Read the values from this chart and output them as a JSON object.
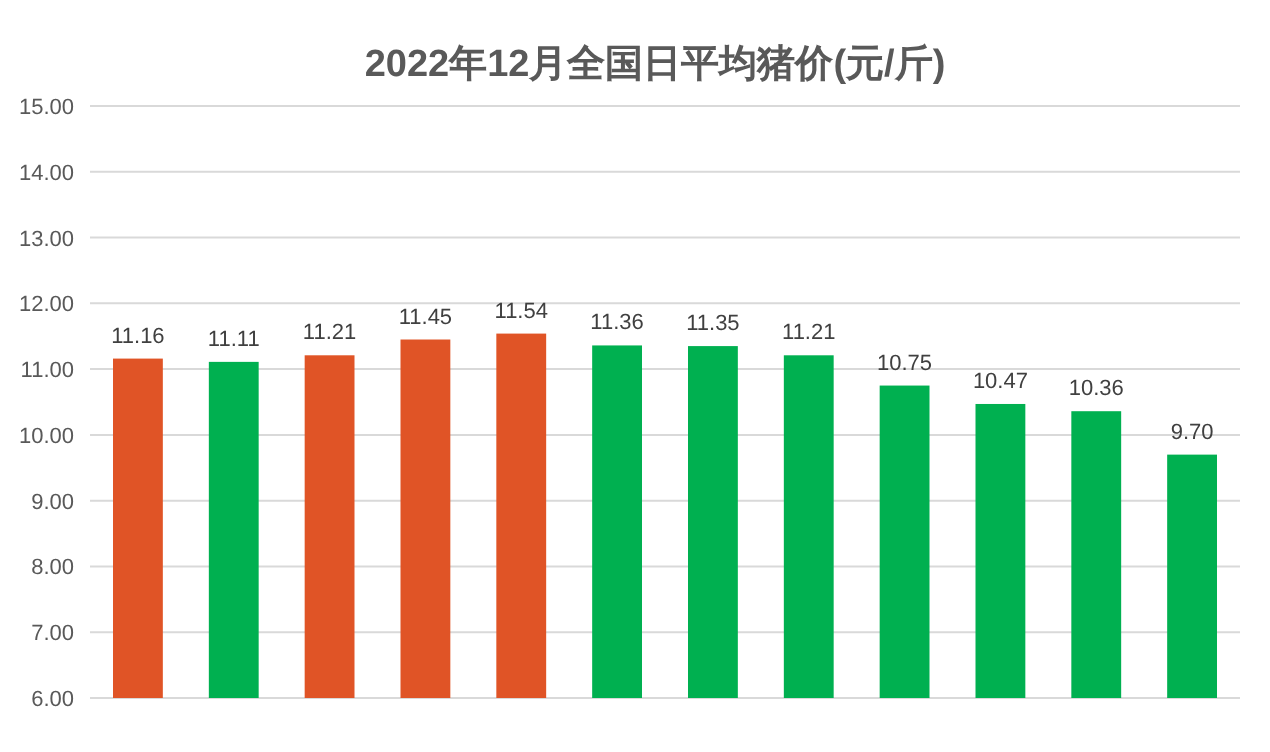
{
  "chart_data": {
    "type": "bar",
    "title": "2022年12月全国日平均猪价(元/斤)",
    "categories": [
      null,
      null,
      null,
      null,
      null,
      null,
      null,
      null,
      null,
      null,
      null,
      null
    ],
    "values": [
      11.16,
      11.11,
      11.21,
      11.45,
      11.54,
      11.36,
      11.35,
      11.21,
      10.75,
      10.47,
      10.36,
      9.7
    ],
    "value_labels": [
      "11.16",
      "11.11",
      "11.21",
      "11.45",
      "11.54",
      "11.36",
      "11.35",
      "11.21",
      "10.75",
      "10.47",
      "10.36",
      "9.70"
    ],
    "colors": [
      "#e05426",
      "#00b050",
      "#e05426",
      "#e05426",
      "#e05426",
      "#00b050",
      "#00b050",
      "#00b050",
      "#00b050",
      "#00b050",
      "#00b050",
      "#00b050"
    ],
    "ylim": [
      6,
      15
    ],
    "yticks": [
      {
        "value": 6,
        "label": "6.00"
      },
      {
        "value": 7,
        "label": "7.00"
      },
      {
        "value": 8,
        "label": "8.00"
      },
      {
        "value": 9,
        "label": "9.00"
      },
      {
        "value": 10,
        "label": "10.00"
      },
      {
        "value": 11,
        "label": "11.00"
      },
      {
        "value": 12,
        "label": "12.00"
      },
      {
        "value": 13,
        "label": "13.00"
      },
      {
        "value": 14,
        "label": "14.00"
      },
      {
        "value": 15,
        "label": "15.00"
      }
    ],
    "grid": "y"
  }
}
